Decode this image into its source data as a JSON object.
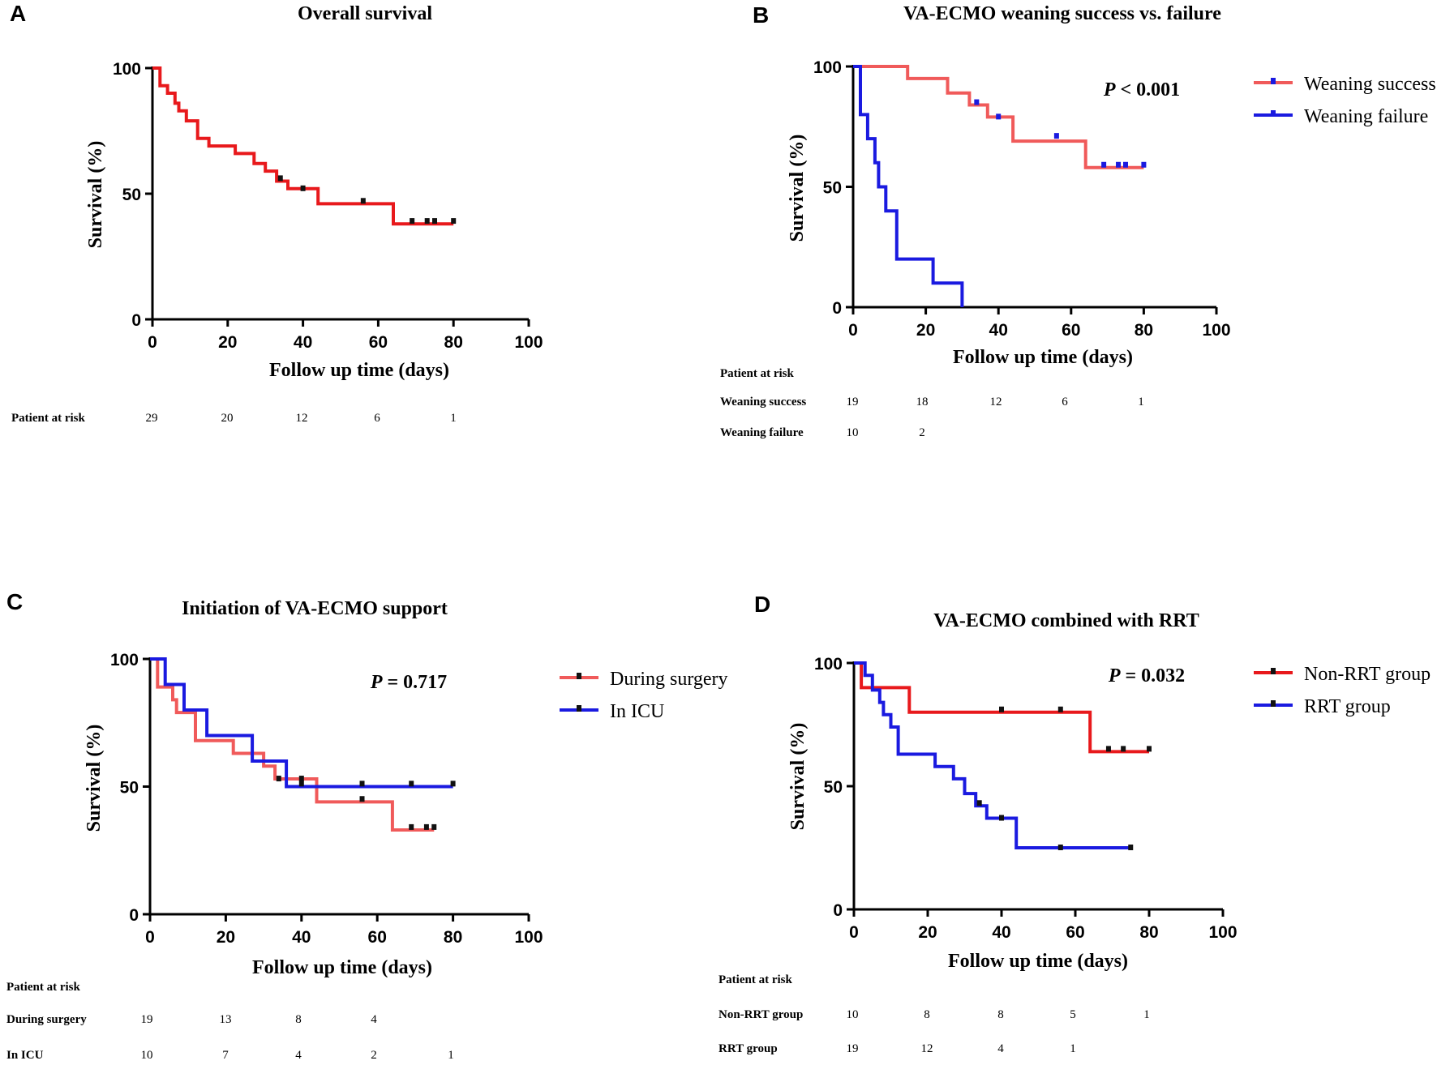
{
  "chart_data": [
    {
      "id": "A",
      "type": "line",
      "panel_letter": "A",
      "title": "Overall  survival",
      "xlabel": "Follow up time (days)",
      "ylabel": "Survival (%)",
      "xlim": [
        0,
        100
      ],
      "ylim": [
        0,
        100
      ],
      "xticks": [
        "0",
        "20",
        "40",
        "60",
        "80",
        "100"
      ],
      "yticks": [
        "0",
        "50",
        "100"
      ],
      "legend": "none",
      "pvalue": null,
      "series": [
        {
          "name": "Overall",
          "color": "#e8191c",
          "steps": [
            [
              0,
              100
            ],
            [
              2,
              100
            ],
            [
              2,
              93
            ],
            [
              4,
              93
            ],
            [
              4,
              90
            ],
            [
              6,
              90
            ],
            [
              6,
              86
            ],
            [
              7,
              86
            ],
            [
              7,
              83
            ],
            [
              9,
              83
            ],
            [
              9,
              79
            ],
            [
              12,
              79
            ],
            [
              12,
              72
            ],
            [
              15,
              72
            ],
            [
              15,
              69
            ],
            [
              22,
              69
            ],
            [
              22,
              66
            ],
            [
              27,
              66
            ],
            [
              27,
              62
            ],
            [
              30,
              62
            ],
            [
              30,
              59
            ],
            [
              33,
              59
            ],
            [
              33,
              55
            ],
            [
              36,
              55
            ],
            [
              36,
              52
            ],
            [
              44,
              52
            ],
            [
              44,
              46
            ],
            [
              64,
              46
            ],
            [
              64,
              38
            ],
            [
              80,
              38
            ]
          ],
          "censored": [
            [
              34,
              56
            ],
            [
              40,
              52
            ],
            [
              56,
              47
            ],
            [
              69,
              39
            ],
            [
              73,
              39
            ],
            [
              75,
              39
            ],
            [
              80,
              39
            ]
          ]
        }
      ],
      "risk_table": {
        "header": "",
        "rows": [
          {
            "label": "Patient at risk",
            "values": [
              "29",
              "20",
              "12",
              "6",
              "1"
            ]
          }
        ]
      }
    },
    {
      "id": "B",
      "type": "line",
      "panel_letter": "B",
      "title": "VA-ECMO weaning success vs. failure",
      "xlabel": "Follow up time (days)",
      "ylabel": "Survival (%)",
      "xlim": [
        0,
        100
      ],
      "ylim": [
        0,
        100
      ],
      "xticks": [
        "0",
        "20",
        "40",
        "60",
        "80",
        "100"
      ],
      "yticks": [
        "0",
        "50",
        "100"
      ],
      "legend": "top-right",
      "pvalue": {
        "p": "P",
        "rest": " < 0.001"
      },
      "series": [
        {
          "name": "Weaning success",
          "color": "#f05a5a",
          "tick_color": "#1a1ae0",
          "steps": [
            [
              0,
              100
            ],
            [
              15,
              100
            ],
            [
              15,
              95
            ],
            [
              26,
              95
            ],
            [
              26,
              89
            ],
            [
              32,
              89
            ],
            [
              32,
              84
            ],
            [
              37,
              84
            ],
            [
              37,
              79
            ],
            [
              44,
              79
            ],
            [
              44,
              69
            ],
            [
              64,
              69
            ],
            [
              64,
              58
            ],
            [
              80,
              58
            ]
          ],
          "censored": [
            [
              34,
              85
            ],
            [
              40,
              79
            ],
            [
              56,
              71
            ],
            [
              69,
              59
            ],
            [
              73,
              59
            ],
            [
              75,
              59
            ],
            [
              80,
              59
            ]
          ]
        },
        {
          "name": "Weaning failure",
          "color": "#1a1ae0",
          "tick_color": "#1a1ae0",
          "steps": [
            [
              0,
              100
            ],
            [
              2,
              100
            ],
            [
              2,
              80
            ],
            [
              4,
              80
            ],
            [
              4,
              70
            ],
            [
              6,
              70
            ],
            [
              6,
              60
            ],
            [
              7,
              60
            ],
            [
              7,
              50
            ],
            [
              9,
              50
            ],
            [
              9,
              40
            ],
            [
              12,
              40
            ],
            [
              12,
              20
            ],
            [
              22,
              20
            ],
            [
              22,
              10
            ],
            [
              30,
              10
            ],
            [
              30,
              0
            ]
          ],
          "censored": []
        }
      ],
      "risk_table": {
        "header": "Patient at risk",
        "rows": [
          {
            "label": "Weaning success",
            "values": [
              "19",
              "18",
              "12",
              "6",
              "1"
            ]
          },
          {
            "label": "Weaning failure",
            "values": [
              "10",
              "2"
            ]
          }
        ]
      }
    },
    {
      "id": "C",
      "type": "line",
      "panel_letter": "C",
      "title": "Initiation of VA-ECMO support",
      "xlabel": "Follow up time (days)",
      "ylabel": "Survival (%)",
      "xlim": [
        0,
        100
      ],
      "ylim": [
        0,
        100
      ],
      "xticks": [
        "0",
        "20",
        "40",
        "60",
        "80",
        "100"
      ],
      "yticks": [
        "0",
        "50",
        "100"
      ],
      "legend": "top-right",
      "pvalue": {
        "p": "P",
        "rest": " = 0.717"
      },
      "series": [
        {
          "name": "During surgery",
          "color": "#f05a5a",
          "tick_color": "#111111",
          "steps": [
            [
              0,
              100
            ],
            [
              2,
              100
            ],
            [
              2,
              89
            ],
            [
              6,
              89
            ],
            [
              6,
              84
            ],
            [
              7,
              84
            ],
            [
              7,
              79
            ],
            [
              12,
              79
            ],
            [
              12,
              68
            ],
            [
              22,
              68
            ],
            [
              22,
              63
            ],
            [
              30,
              63
            ],
            [
              30,
              58
            ],
            [
              33,
              58
            ],
            [
              33,
              53
            ],
            [
              44,
              53
            ],
            [
              44,
              44
            ],
            [
              64,
              44
            ],
            [
              64,
              33
            ],
            [
              75,
              33
            ]
          ],
          "censored": [
            [
              34,
              53
            ],
            [
              40,
              53
            ],
            [
              56,
              45
            ],
            [
              69,
              34
            ],
            [
              73,
              34
            ],
            [
              75,
              34
            ]
          ]
        },
        {
          "name": "In ICU",
          "color": "#1a1ae0",
          "tick_color": "#111111",
          "steps": [
            [
              0,
              100
            ],
            [
              4,
              100
            ],
            [
              4,
              90
            ],
            [
              9,
              90
            ],
            [
              9,
              80
            ],
            [
              15,
              80
            ],
            [
              15,
              70
            ],
            [
              27,
              70
            ],
            [
              27,
              60
            ],
            [
              36,
              60
            ],
            [
              36,
              50
            ],
            [
              80,
              50
            ]
          ],
          "censored": [
            [
              40,
              51
            ],
            [
              56,
              51
            ],
            [
              69,
              51
            ],
            [
              80,
              51
            ]
          ]
        }
      ],
      "risk_table": {
        "header": "Patient at risk",
        "rows": [
          {
            "label": "During surgery",
            "values": [
              "19",
              "13",
              "8",
              "4"
            ]
          },
          {
            "label": "In ICU",
            "values": [
              "10",
              "7",
              "4",
              "2",
              "1"
            ]
          }
        ]
      }
    },
    {
      "id": "D",
      "type": "line",
      "panel_letter": "D",
      "title": "VA-ECMO combined with RRT",
      "xlabel": "Follow up time (days)",
      "ylabel": "Survival (%)",
      "xlim": [
        0,
        100
      ],
      "ylim": [
        0,
        100
      ],
      "xticks": [
        "0",
        "20",
        "40",
        "60",
        "80",
        "100"
      ],
      "yticks": [
        "0",
        "50",
        "100"
      ],
      "legend": "top-right",
      "pvalue": {
        "p": "P",
        "rest": " = 0.032"
      },
      "series": [
        {
          "name": "Non-RRT group",
          "color": "#e8191c",
          "tick_color": "#111111",
          "steps": [
            [
              0,
              100
            ],
            [
              2,
              100
            ],
            [
              2,
              90
            ],
            [
              15,
              90
            ],
            [
              15,
              80
            ],
            [
              64,
              80
            ],
            [
              64,
              64
            ],
            [
              80,
              64
            ]
          ],
          "censored": [
            [
              40,
              81
            ],
            [
              56,
              81
            ],
            [
              69,
              65
            ],
            [
              73,
              65
            ],
            [
              80,
              65
            ]
          ]
        },
        {
          "name": "RRT group",
          "color": "#1a1ae0",
          "tick_color": "#111111",
          "steps": [
            [
              0,
              100
            ],
            [
              3,
              100
            ],
            [
              3,
              95
            ],
            [
              5,
              95
            ],
            [
              5,
              89
            ],
            [
              7,
              89
            ],
            [
              7,
              84
            ],
            [
              8,
              84
            ],
            [
              8,
              79
            ],
            [
              10,
              79
            ],
            [
              10,
              74
            ],
            [
              12,
              74
            ],
            [
              12,
              63
            ],
            [
              22,
              63
            ],
            [
              22,
              58
            ],
            [
              27,
              58
            ],
            [
              27,
              53
            ],
            [
              30,
              53
            ],
            [
              30,
              47
            ],
            [
              33,
              47
            ],
            [
              33,
              42
            ],
            [
              36,
              42
            ],
            [
              36,
              37
            ],
            [
              44,
              37
            ],
            [
              44,
              25
            ],
            [
              75,
              25
            ]
          ],
          "censored": [
            [
              34,
              43
            ],
            [
              40,
              37
            ],
            [
              56,
              25
            ],
            [
              75,
              25
            ]
          ]
        }
      ],
      "risk_table": {
        "header": "Patient at risk",
        "rows": [
          {
            "label": "Non-RRT group",
            "values": [
              "10",
              "8",
              "8",
              "5",
              "1"
            ]
          },
          {
            "label": "RRT group",
            "values": [
              "19",
              "12",
              "4",
              "1"
            ]
          }
        ]
      }
    }
  ]
}
